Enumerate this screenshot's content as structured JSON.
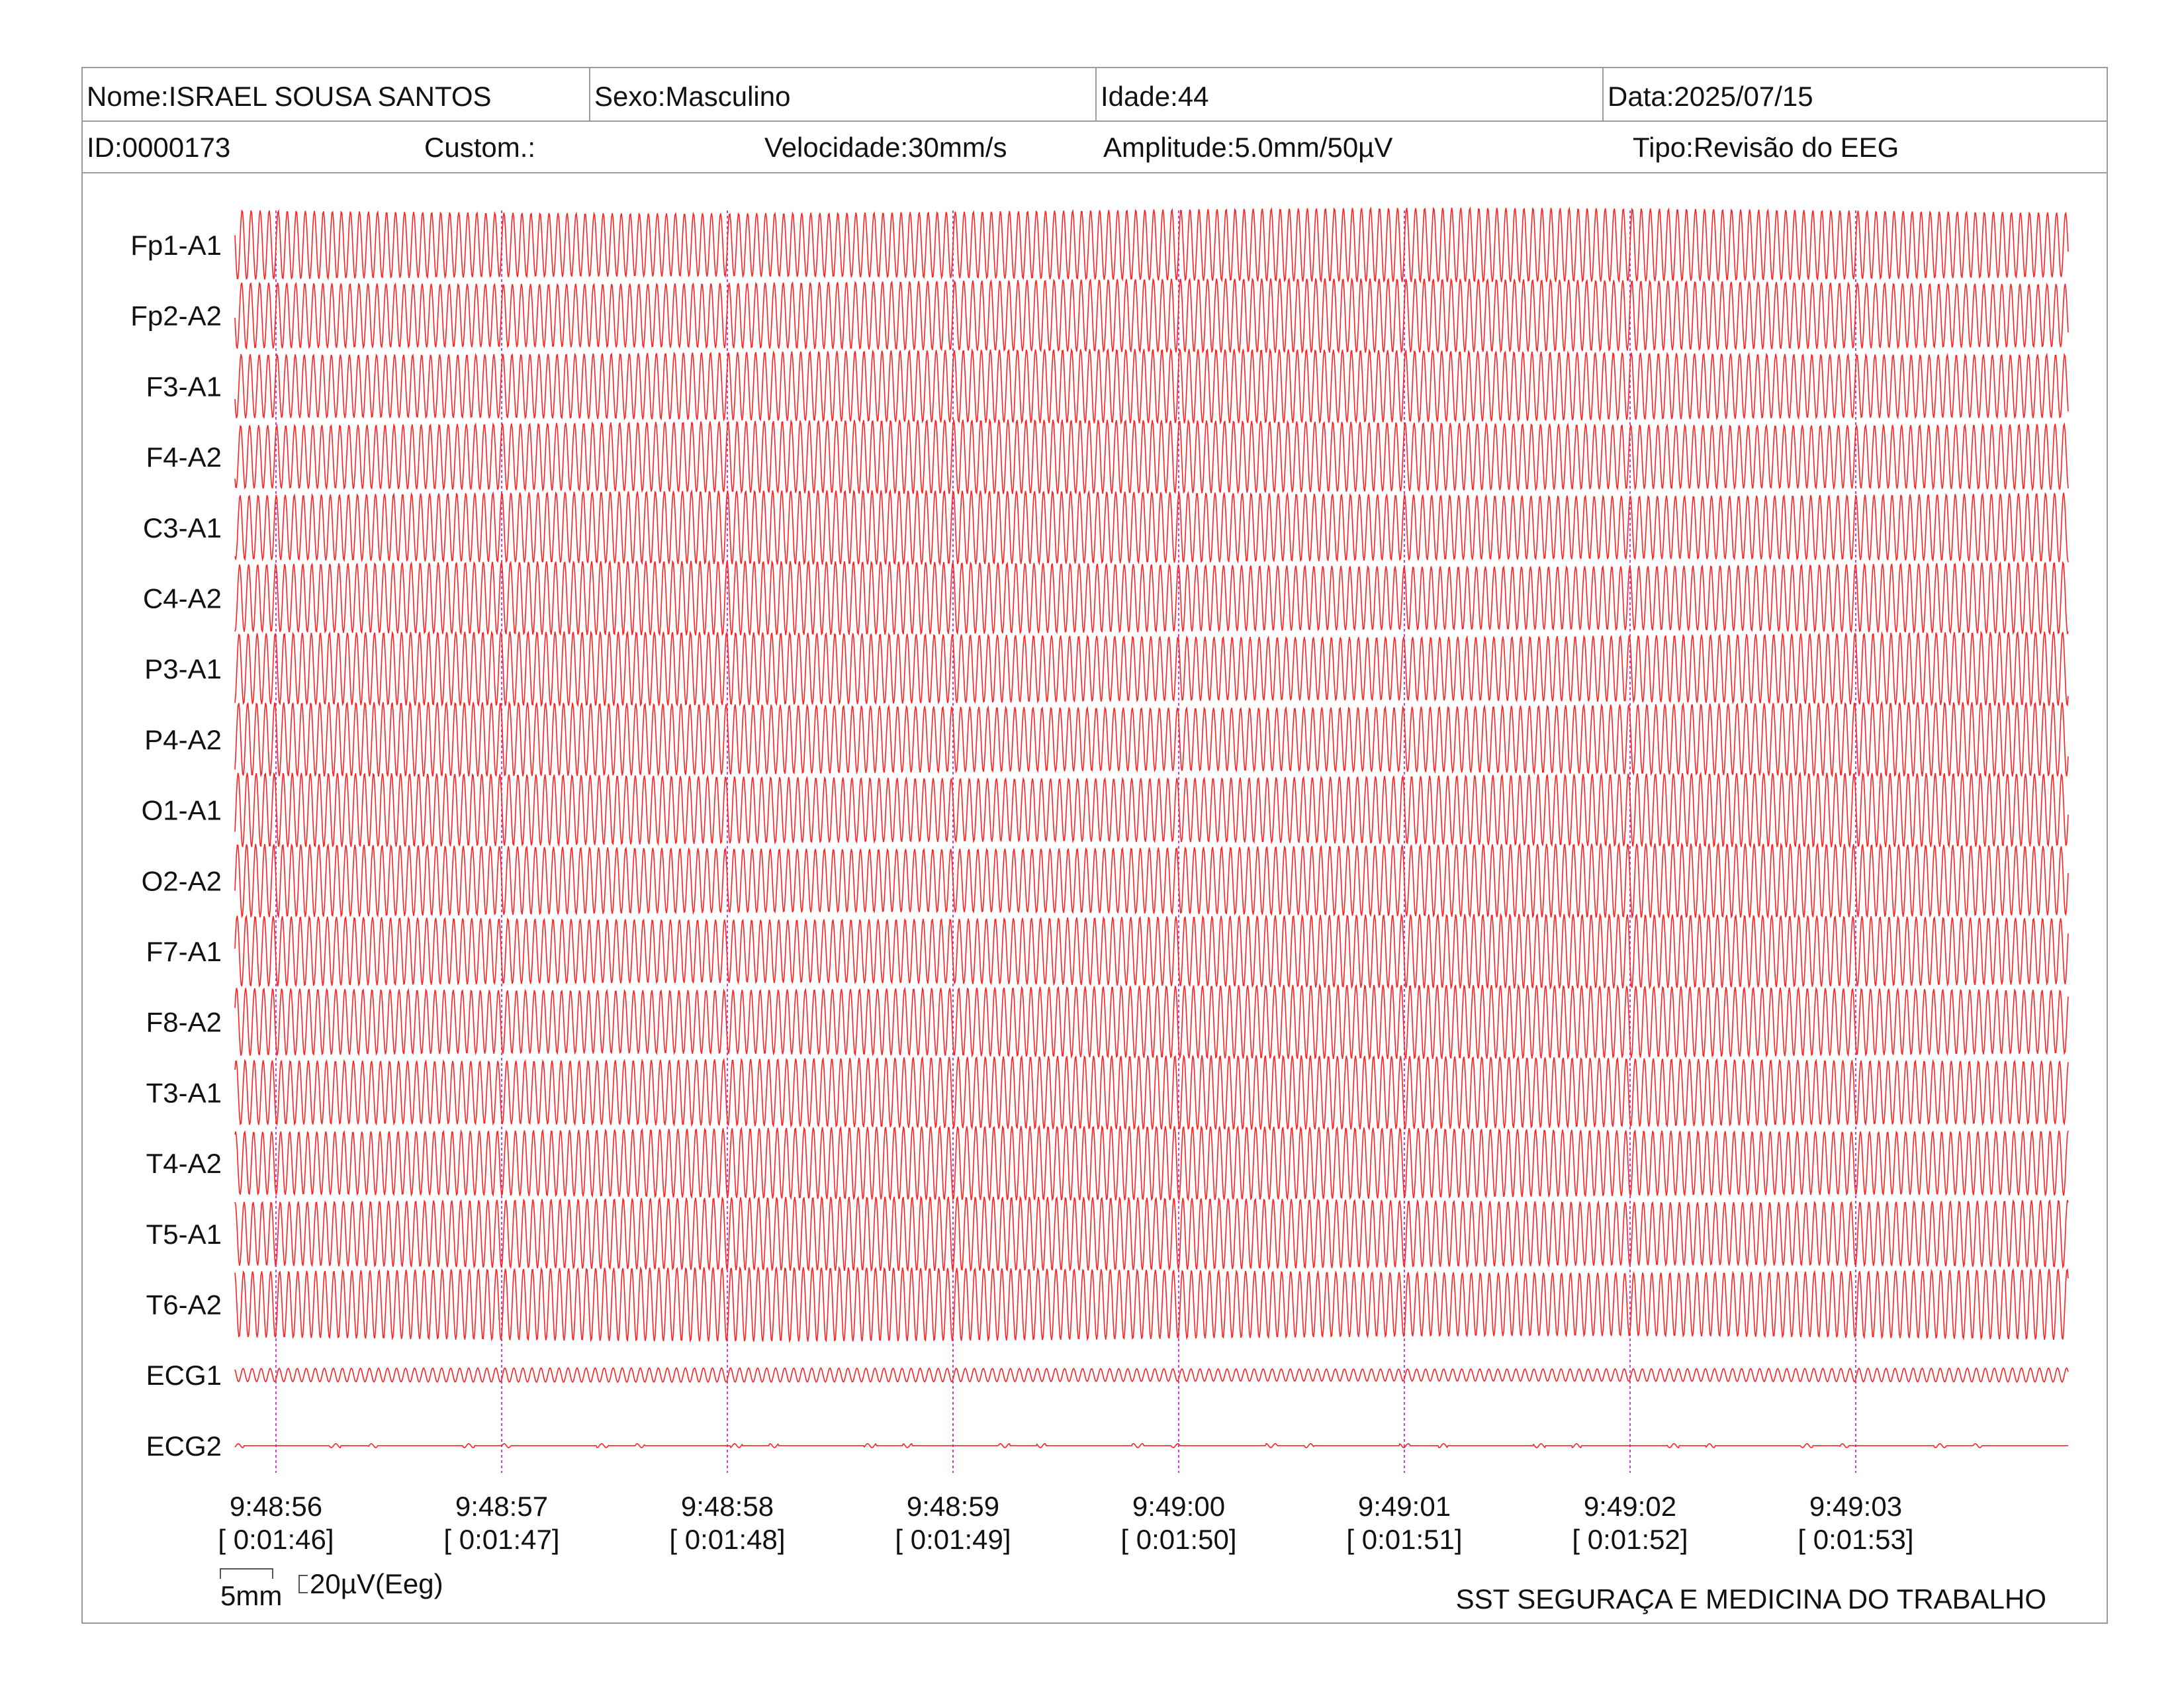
{
  "header": {
    "name": "Nome:ISRAEL SOUSA SANTOS",
    "sex": "Sexo:Masculino",
    "age": "Idade:44",
    "date": "Data:2025/07/15",
    "id": "ID:0000173",
    "custom": "Custom.:",
    "speed": "Velocidade:30mm/s",
    "amplitude": "Amplitude:5.0mm/50µV",
    "type": "Tipo:Revisão do EEG"
  },
  "scale": {
    "time_label": "5mm",
    "amp_label": "20µV(Eeg)"
  },
  "footer": {
    "company": "SST SEGURAÇA E MEDICINA DO TRABALHO"
  },
  "colors": {
    "trace": "#ff2020",
    "marker": "#d040d0",
    "frame": "#9a9a9a"
  },
  "chart_data": {
    "type": "line",
    "title": "",
    "channels": [
      "Fp1-A1",
      "Fp2-A2",
      "F3-A1",
      "F4-A2",
      "C3-A1",
      "C4-A2",
      "P3-A1",
      "P4-A2",
      "O1-A1",
      "O2-A2",
      "F7-A1",
      "F8-A2",
      "T3-A1",
      "T4-A2",
      "T5-A1",
      "T6-A2",
      "ECG1",
      "ECG2"
    ],
    "time_markers": [
      {
        "clock": "9:48:56",
        "elapsed": "[ 0:01:46]"
      },
      {
        "clock": "9:48:57",
        "elapsed": "[ 0:01:47]"
      },
      {
        "clock": "9:48:58",
        "elapsed": "[ 0:01:48]"
      },
      {
        "clock": "9:48:59",
        "elapsed": "[ 0:01:49]"
      },
      {
        "clock": "9:49:00",
        "elapsed": "[ 0:01:50]"
      },
      {
        "clock": "9:49:01",
        "elapsed": "[ 0:01:51]"
      },
      {
        "clock": "9:49:02",
        "elapsed": "[ 0:01:52]"
      },
      {
        "clock": "9:49:03",
        "elapsed": "[ 0:01:53]"
      }
    ],
    "eeg_frequency_hz": 25,
    "ecg1_frequency_hz": 25,
    "grid": false,
    "legend": "none"
  }
}
